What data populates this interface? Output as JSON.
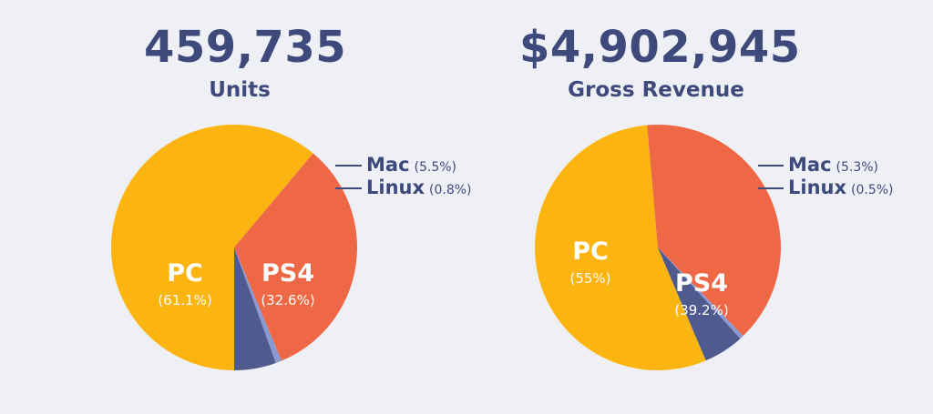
{
  "colors": {
    "background": "#eef0f6",
    "PC": "#fbb410",
    "PS4": "#ee6845",
    "Mac": "#4f5a8f",
    "Linux": "#8a9ad0",
    "headline": "#3f4a7c",
    "inside_label": "#ffffff"
  },
  "chart_data": [
    {
      "type": "pie",
      "title": "459,735",
      "subtitle": "Units",
      "slices": [
        {
          "name": "PC",
          "label": "(61.1%)",
          "value": 61.1
        },
        {
          "name": "PS4",
          "label": "(32.6%)",
          "value": 32.6
        },
        {
          "name": "Linux",
          "label": "(0.8%)",
          "value": 0.8
        },
        {
          "name": "Mac",
          "label": "(5.5%)",
          "value": 5.5
        }
      ]
    },
    {
      "type": "pie",
      "title": "$4,902,945",
      "subtitle": "Gross Revenue",
      "slices": [
        {
          "name": "PC",
          "label": "(55%)",
          "value": 55
        },
        {
          "name": "PS4",
          "label": "(39.2%)",
          "value": 39.2
        },
        {
          "name": "Linux",
          "label": "(0.5%)",
          "value": 0.5
        },
        {
          "name": "Mac",
          "label": "(5.3%)",
          "value": 5.3
        }
      ]
    }
  ]
}
